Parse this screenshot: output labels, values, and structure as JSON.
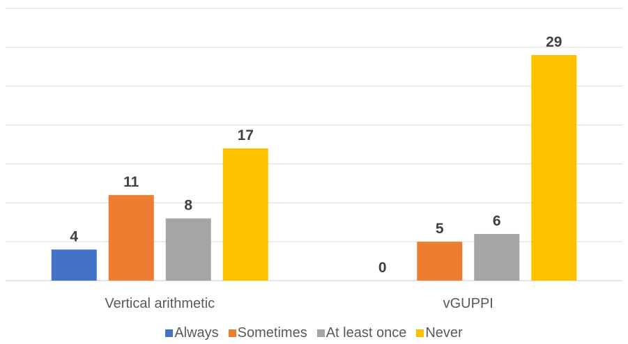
{
  "chart_data": {
    "type": "bar",
    "categories": [
      "Vertical arithmetic",
      "vGUPPI"
    ],
    "series": [
      {
        "name": "Always",
        "values": [
          4,
          0
        ],
        "color": "#4472C4"
      },
      {
        "name": "Sometimes",
        "values": [
          11,
          5
        ],
        "color": "#ED7D31"
      },
      {
        "name": "At least once",
        "values": [
          8,
          6
        ],
        "color": "#A5A5A5"
      },
      {
        "name": "Never",
        "values": [
          17,
          29
        ],
        "color": "#FFC000"
      }
    ],
    "ylim": [
      0,
      35
    ],
    "grid": true,
    "legend": "bottom",
    "data_labels": true
  }
}
